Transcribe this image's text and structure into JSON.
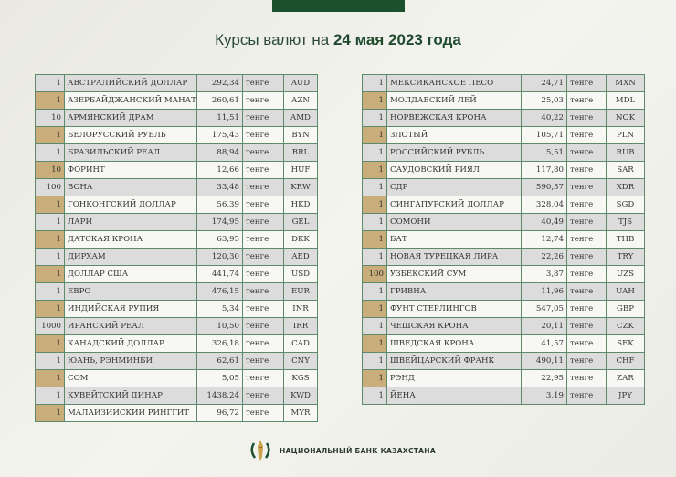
{
  "title": {
    "prefix": "Курсы валют на",
    "date": "24 мая 2023 года"
  },
  "unit": "тенге",
  "colors": {
    "green": "#1b4f2e",
    "gold": "#c9ad7a",
    "gray_row": "#dcdcdc"
  },
  "left_table": [
    [
      "1",
      "АВСТРАЛИЙСКИЙ ДОЛЛАР",
      "292,34",
      "AUD"
    ],
    [
      "1",
      "АЗЕРБАЙДЖАНСКИЙ МАНАТ",
      "260,61",
      "AZN"
    ],
    [
      "10",
      "АРМЯНСКИЙ  ДРАМ",
      "11,51",
      "AMD"
    ],
    [
      "1",
      "БЕЛОРУССКИЙ РУБЛЬ",
      "175,43",
      "BYN"
    ],
    [
      "1",
      "БРАЗИЛЬСКИЙ РЕАЛ",
      "88,94",
      "BRL"
    ],
    [
      "10",
      "ФОРИНТ",
      "12,66",
      "HUF"
    ],
    [
      "100",
      "ВОНА",
      "33,48",
      "KRW"
    ],
    [
      "1",
      "ГОНКОНГСКИЙ ДОЛЛАР",
      "56,39",
      "HKD"
    ],
    [
      "1",
      "ЛАРИ",
      "174,95",
      "GEL"
    ],
    [
      "1",
      "ДАТСКАЯ КРОНА",
      "63,95",
      "DKK"
    ],
    [
      "1",
      "ДИРХАМ",
      "120,30",
      "AED"
    ],
    [
      "1",
      "ДОЛЛАР США",
      "441,74",
      "USD"
    ],
    [
      "1",
      "ЕВРО",
      "476,15",
      "EUR"
    ],
    [
      "1",
      "ИНДИЙСКАЯ РУПИЯ",
      "5,34",
      "INR"
    ],
    [
      "1000",
      "ИРАНСКИЙ РЕАЛ",
      "10,50",
      "IRR"
    ],
    [
      "1",
      "КАНАДСКИЙ ДОЛЛАР",
      "326,18",
      "CAD"
    ],
    [
      "1",
      "ЮАНЬ, РЭНМИНБИ",
      "62,61",
      "CNY"
    ],
    [
      "1",
      "СОМ",
      "5,05",
      "KGS"
    ],
    [
      "1",
      "КУВЕЙТСКИЙ ДИНАР",
      "1438,24",
      "KWD"
    ],
    [
      "1",
      "МАЛАЙЗИЙСКИЙ РИНГГИТ",
      "96,72",
      "MYR"
    ]
  ],
  "right_table": [
    [
      "1",
      "МЕКСИКАНСКОЕ ПЕСО",
      "24,71",
      "MXN"
    ],
    [
      "1",
      "МОЛДАВСКИЙ ЛЕЙ",
      "25,03",
      "MDL"
    ],
    [
      "1",
      "НОРВЕЖСКАЯ КРОНА",
      "40,22",
      "NOK"
    ],
    [
      "1",
      "ЗЛОТЫЙ",
      "105,71",
      "PLN"
    ],
    [
      "1",
      "РОССИЙСКИЙ РУБЛЬ",
      "5,51",
      "RUB"
    ],
    [
      "1",
      "САУДОВСКИЙ РИЯЛ",
      "117,80",
      "SAR"
    ],
    [
      "1",
      "СДР",
      "590,57",
      "XDR"
    ],
    [
      "1",
      "СИНГАПУРСКИЙ ДОЛЛАР",
      "328,04",
      "SGD"
    ],
    [
      "1",
      "СОМОНИ",
      "40,49",
      "TJS"
    ],
    [
      "1",
      "БАТ",
      "12,74",
      "THB"
    ],
    [
      "1",
      "НОВАЯ ТУРЕЦКАЯ ЛИРА",
      "22,26",
      "TRY"
    ],
    [
      "100",
      "УЗБЕКСКИЙ СУМ",
      "3,87",
      "UZS"
    ],
    [
      "1",
      "ГРИВНА",
      "11,96",
      "UAH"
    ],
    [
      "1",
      "ФУНТ СТЕРЛИНГОВ",
      "547,05",
      "GBP"
    ],
    [
      "1",
      "ЧЕШСКАЯ КРОНА",
      "20,11",
      "CZK"
    ],
    [
      "1",
      "ШВЕДСКАЯ КРОНА",
      "41,57",
      "SEK"
    ],
    [
      "1",
      "ШВЕЙЦАРСКИЙ ФРАНК",
      "490,11",
      "CHF"
    ],
    [
      "1",
      "РЭНД",
      "22,95",
      "ZAR"
    ],
    [
      "1",
      "ЙЕНА",
      "3,19",
      "JPY"
    ]
  ],
  "footer": {
    "bank_name": "НАЦИОНАЛЬНЫЙ БАНК КАЗАХСТАНА",
    "logo_icon": "nbk-emblem-icon"
  }
}
